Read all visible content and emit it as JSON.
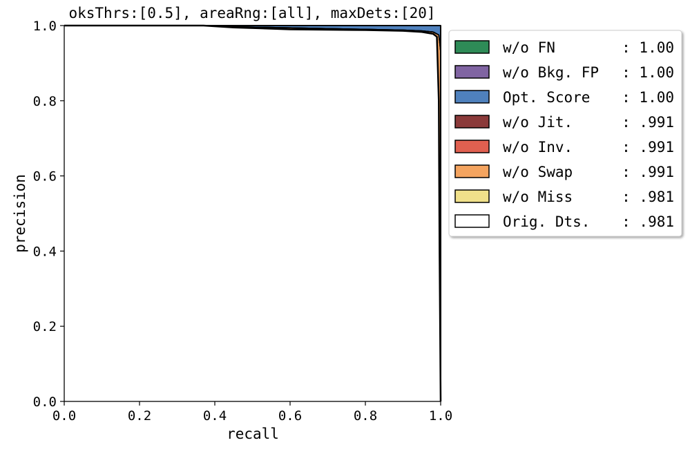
{
  "chart_data": {
    "type": "area",
    "title": "oksThrs:[0.5], areaRng:[all], maxDets:[20]",
    "xlabel": "recall",
    "ylabel": "precision",
    "xlim": [
      0.0,
      1.0
    ],
    "ylim": [
      0.0,
      1.0
    ],
    "xticks": [
      "0.0",
      "0.2",
      "0.4",
      "0.6",
      "0.8",
      "1.0"
    ],
    "yticks": [
      "0.0",
      "0.2",
      "0.4",
      "0.6",
      "0.8",
      "1.0"
    ],
    "grid": true,
    "legend_position": "outside-right",
    "series": [
      {
        "name": "w/o FN",
        "score": "1.00",
        "color": "#2e8b57",
        "x": [
          0.0,
          1.0,
          1.0
        ],
        "y": [
          1.0,
          1.0,
          0.0
        ]
      },
      {
        "name": "w/o Bkg. FP",
        "score": "1.00",
        "color": "#8064a2",
        "x": [
          0.0,
          1.0,
          1.0
        ],
        "y": [
          1.0,
          1.0,
          0.0
        ]
      },
      {
        "name": "Opt. Score",
        "score": "1.00",
        "color": "#4f81bd",
        "x": [
          0.0,
          1.0,
          1.0
        ],
        "y": [
          1.0,
          1.0,
          0.0
        ]
      },
      {
        "name": "w/o Jit.",
        "score": ".991",
        "color": "#8b3a3a",
        "x": [
          0.0,
          0.37,
          0.45,
          0.55,
          0.65,
          0.8,
          0.9,
          0.95,
          0.98,
          0.995,
          0.998,
          1.0,
          1.0
        ],
        "y": [
          1.0,
          1.0,
          0.997,
          0.995,
          0.993,
          0.99,
          0.988,
          0.986,
          0.983,
          0.975,
          0.95,
          0.93,
          0.0
        ]
      },
      {
        "name": "w/o Inv.",
        "score": ".991",
        "color": "#e06050",
        "x": [
          0.0,
          0.37,
          0.45,
          0.55,
          0.65,
          0.8,
          0.9,
          0.95,
          0.98,
          0.995,
          0.998,
          1.0,
          1.0
        ],
        "y": [
          1.0,
          1.0,
          0.997,
          0.995,
          0.993,
          0.99,
          0.988,
          0.986,
          0.983,
          0.975,
          0.95,
          0.93,
          0.0
        ]
      },
      {
        "name": "w/o Swap",
        "score": ".991",
        "color": "#f4a460",
        "x": [
          0.0,
          0.37,
          0.45,
          0.55,
          0.65,
          0.8,
          0.9,
          0.95,
          0.98,
          0.995,
          0.998,
          1.0,
          1.0
        ],
        "y": [
          1.0,
          1.0,
          0.997,
          0.995,
          0.993,
          0.99,
          0.988,
          0.986,
          0.983,
          0.975,
          0.95,
          0.93,
          0.0
        ]
      },
      {
        "name": "w/o Miss",
        "score": ".981",
        "color": "#f0e08a",
        "x": [
          0.0,
          0.37,
          0.45,
          0.6,
          0.8,
          0.9,
          0.95,
          0.98,
          0.99,
          0.995,
          0.997,
          1.0
        ],
        "y": [
          1.0,
          1.0,
          0.995,
          0.99,
          0.988,
          0.986,
          0.983,
          0.978,
          0.97,
          0.8,
          0.4,
          0.0
        ]
      },
      {
        "name": "Orig. Dts.",
        "score": ".981",
        "color": "#ffffff",
        "x": [
          0.0,
          0.37,
          0.45,
          0.6,
          0.8,
          0.9,
          0.95,
          0.98,
          0.99,
          0.995,
          0.997,
          1.0
        ],
        "y": [
          1.0,
          1.0,
          0.995,
          0.99,
          0.988,
          0.986,
          0.983,
          0.978,
          0.97,
          0.8,
          0.4,
          0.0
        ]
      }
    ]
  }
}
